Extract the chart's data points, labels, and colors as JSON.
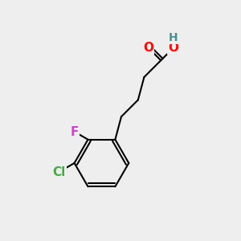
{
  "bg_color": "#eeeeee",
  "bond_color": "#000000",
  "bond_width": 1.5,
  "atom_colors": {
    "O": "#ff0000",
    "H": "#4a9090",
    "F": "#cc44cc",
    "Cl": "#44aa44",
    "C": "#000000"
  }
}
